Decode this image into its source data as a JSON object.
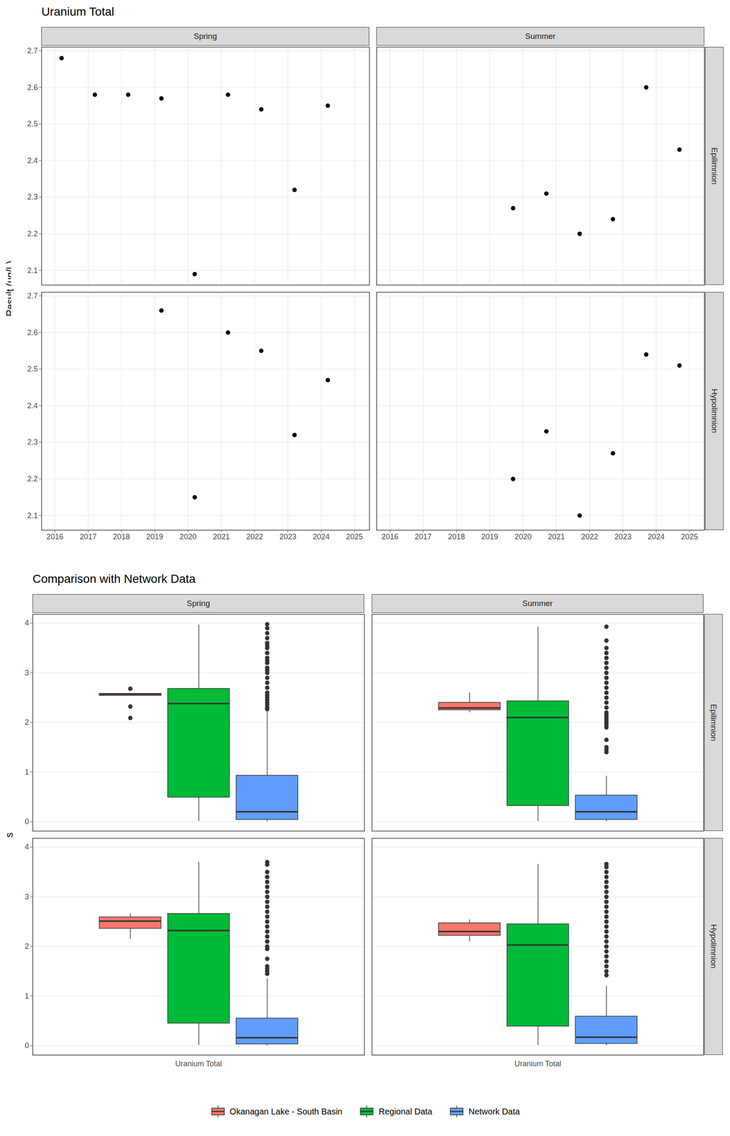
{
  "chart_data": [
    {
      "type": "scatter",
      "title": "Uranium Total",
      "y_label": "Result (ug/L)",
      "columns": [
        "Spring",
        "Summer"
      ],
      "rows": [
        "Epilimnion",
        "Hypolimnion"
      ],
      "xlim": [
        2015.6,
        2025.45
      ],
      "xticks": [
        2016,
        2017,
        2018,
        2019,
        2020,
        2021,
        2022,
        2023,
        2024,
        2025
      ],
      "ylim": [
        2.06,
        2.71
      ],
      "yticks": [
        2.1,
        2.2,
        2.3,
        2.4,
        2.5,
        2.6,
        2.7
      ],
      "grid": true,
      "color": "#000000",
      "marker": "circle",
      "panels": [
        {
          "column": "Spring",
          "row": "Epilimnion",
          "x": [
            2016.2,
            2017.2,
            2018.2,
            2019.2,
            2020.2,
            2021.2,
            2022.2,
            2023.2,
            2024.2
          ],
          "values": [
            2.68,
            2.58,
            2.58,
            2.57,
            2.09,
            2.58,
            2.54,
            2.32,
            2.55
          ]
        },
        {
          "column": "Summer",
          "row": "Epilimnion",
          "x": [
            2019.7,
            2020.7,
            2021.7,
            2022.7,
            2023.7,
            2024.7
          ],
          "values": [
            2.27,
            2.31,
            2.2,
            2.24,
            2.6,
            2.43
          ]
        },
        {
          "column": "Spring",
          "row": "Hypolimnion",
          "x": [
            2019.2,
            2020.2,
            2021.2,
            2022.2,
            2023.2,
            2024.2
          ],
          "values": [
            2.66,
            2.15,
            2.6,
            2.55,
            2.32,
            2.47
          ]
        },
        {
          "column": "Summer",
          "row": "Hypolimnion",
          "x": [
            2019.7,
            2020.7,
            2021.7,
            2022.7,
            2023.7,
            2024.7
          ],
          "values": [
            2.2,
            2.33,
            2.1,
            2.27,
            2.54,
            2.51
          ]
        }
      ]
    },
    {
      "type": "boxplot",
      "title": "Comparison with Network Data",
      "y_label": "Results (ug/L)",
      "columns": [
        "Spring",
        "Summer"
      ],
      "rows": [
        "Epilimnion",
        "Hypolimnion"
      ],
      "categories": [
        "Uranium Total"
      ],
      "ylim": [
        -0.19,
        4.18
      ],
      "yticks": [
        0,
        1,
        2,
        3,
        4
      ],
      "grid": true,
      "legend": "bottom",
      "series": [
        {
          "name": "Okanagan Lake - South Basin",
          "color": "#F8766D",
          "panels": [
            {
              "column": "Spring",
              "row": "Epilimnion",
              "min": 2.54,
              "q1": 2.54,
              "median": 2.57,
              "q3": 2.58,
              "max": 2.58,
              "outliers": [
                2.68,
                2.32,
                2.09
              ]
            },
            {
              "column": "Summer",
              "row": "Epilimnion",
              "min": 2.2,
              "q1": 2.25,
              "median": 2.29,
              "q3": 2.4,
              "max": 2.6,
              "outliers": []
            },
            {
              "column": "Spring",
              "row": "Hypolimnion",
              "min": 2.15,
              "q1": 2.36,
              "median": 2.51,
              "q3": 2.59,
              "max": 2.66,
              "outliers": []
            },
            {
              "column": "Summer",
              "row": "Hypolimnion",
              "min": 2.1,
              "q1": 2.22,
              "median": 2.3,
              "q3": 2.47,
              "max": 2.54,
              "outliers": []
            }
          ]
        },
        {
          "name": "Regional Data",
          "color": "#00BA38",
          "panels": [
            {
              "column": "Spring",
              "row": "Epilimnion",
              "min": 0.01,
              "q1": 0.49,
              "median": 2.38,
              "q3": 2.68,
              "max": 3.97,
              "outliers": []
            },
            {
              "column": "Summer",
              "row": "Epilimnion",
              "min": 0.01,
              "q1": 0.32,
              "median": 2.1,
              "q3": 2.43,
              "max": 3.93,
              "outliers": []
            },
            {
              "column": "Spring",
              "row": "Hypolimnion",
              "min": 0.01,
              "q1": 0.45,
              "median": 2.32,
              "q3": 2.66,
              "max": 3.7,
              "outliers": []
            },
            {
              "column": "Summer",
              "row": "Hypolimnion",
              "min": 0.01,
              "q1": 0.39,
              "median": 2.03,
              "q3": 2.45,
              "max": 3.66,
              "outliers": []
            }
          ]
        },
        {
          "name": "Network Data",
          "color": "#619CFF",
          "panels": [
            {
              "column": "Spring",
              "row": "Epilimnion",
              "min": 0.0,
              "q1": 0.04,
              "median": 0.2,
              "q3": 0.93,
              "max": 2.25,
              "outliers": [
                2.27,
                2.3,
                2.35,
                2.4,
                2.45,
                2.5,
                2.55,
                2.6,
                2.7,
                2.8,
                2.9,
                3.0,
                3.05,
                3.1,
                3.2,
                3.25,
                3.3,
                3.4,
                3.5,
                3.55,
                3.6,
                3.7,
                3.8,
                3.9,
                3.98
              ]
            },
            {
              "column": "Summer",
              "row": "Epilimnion",
              "min": 0.0,
              "q1": 0.04,
              "median": 0.2,
              "q3": 0.53,
              "max": 0.92,
              "outliers": [
                1.4,
                1.45,
                1.5,
                1.65,
                1.9,
                1.95,
                2.0,
                2.05,
                2.1,
                2.15,
                2.2,
                2.3,
                2.4,
                2.5,
                2.6,
                2.7,
                2.8,
                2.9,
                3.0,
                3.1,
                3.2,
                3.3,
                3.4,
                3.5,
                3.65,
                3.93
              ]
            },
            {
              "column": "Spring",
              "row": "Hypolimnion",
              "min": 0.0,
              "q1": 0.03,
              "median": 0.16,
              "q3": 0.55,
              "max": 1.35,
              "outliers": [
                1.45,
                1.5,
                1.55,
                1.6,
                1.75,
                1.95,
                2.0,
                2.1,
                2.2,
                2.3,
                2.4,
                2.5,
                2.6,
                2.7,
                2.8,
                2.9,
                3.0,
                3.1,
                3.2,
                3.3,
                3.4,
                3.5,
                3.65,
                3.7
              ]
            },
            {
              "column": "Summer",
              "row": "Hypolimnion",
              "min": 0.0,
              "q1": 0.04,
              "median": 0.17,
              "q3": 0.59,
              "max": 1.2,
              "outliers": [
                1.42,
                1.5,
                1.6,
                1.7,
                1.8,
                1.9,
                2.0,
                2.1,
                2.2,
                2.3,
                2.4,
                2.5,
                2.6,
                2.7,
                2.8,
                2.9,
                3.0,
                3.1,
                3.2,
                3.3,
                3.4,
                3.5,
                3.6,
                3.66
              ]
            }
          ]
        }
      ]
    }
  ]
}
